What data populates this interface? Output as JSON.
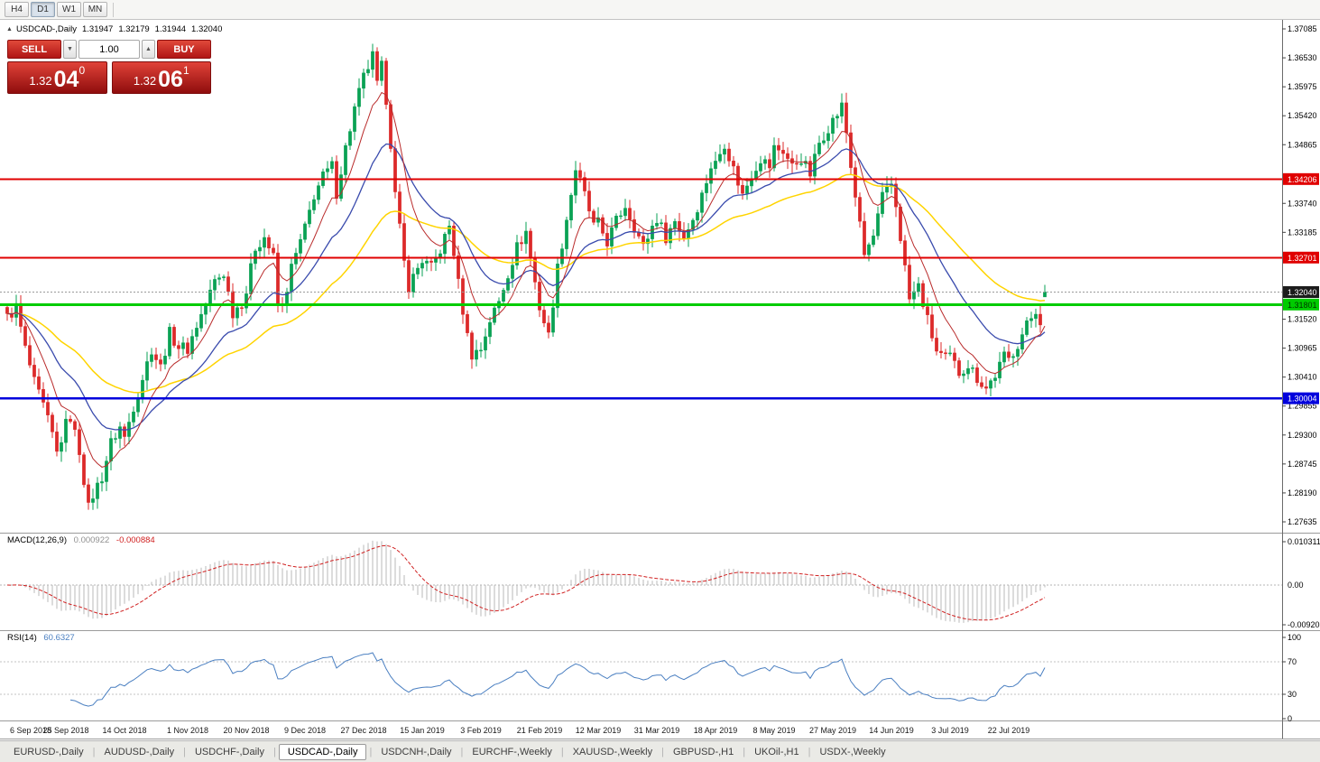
{
  "window": {
    "timeframes": [
      {
        "label": "H4",
        "active": false
      },
      {
        "label": "D1",
        "active": true
      },
      {
        "label": "W1",
        "active": false
      },
      {
        "label": "MN",
        "active": false
      }
    ]
  },
  "chart": {
    "symbol_label": "USDCAD-,Daily",
    "collapse_icon": "▲",
    "ohlc": {
      "open": "1.31947",
      "high": "1.32179",
      "low": "1.31944",
      "close": "1.32040"
    },
    "trade_panel": {
      "sell_label": "SELL",
      "buy_label": "BUY",
      "volume": "1.00",
      "vol_down_icon": "▼",
      "vol_up_icon": "▲",
      "sell_price": {
        "base": "1.32",
        "pips": "04",
        "frac": "0"
      },
      "buy_price": {
        "base": "1.32",
        "pips": "06",
        "frac": "1"
      }
    },
    "price_axis_ticks": [
      "1.37085",
      "1.36530",
      "1.35975",
      "1.35420",
      "1.34865",
      "1.33740",
      "1.33185",
      "1.31520",
      "1.30965",
      "1.30410",
      "1.29855",
      "1.29300",
      "1.28745",
      "1.28190",
      "1.27635"
    ]
  },
  "indicators": {
    "macd": {
      "title": "MACD(12,26,9)",
      "value_main": "0.000922",
      "value_signal": "-0.000884",
      "axis_top": "0.010311",
      "axis_zero": "0.00",
      "axis_bottom": "-0.009203"
    },
    "rsi": {
      "title": "RSI(14)",
      "value": "60.6327",
      "axis": [
        "100",
        "70",
        "30",
        "0"
      ],
      "level_lines": [
        70,
        30
      ]
    }
  },
  "tabs": {
    "items": [
      {
        "label": "EURUSD-,Daily",
        "active": false
      },
      {
        "label": "AUDUSD-,Daily",
        "active": false
      },
      {
        "label": "USDCHF-,Daily",
        "active": false
      },
      {
        "label": "USDCAD-,Daily",
        "active": true
      },
      {
        "label": "USDCNH-,Daily",
        "active": false
      },
      {
        "label": "EURCHF-,Weekly",
        "active": false
      },
      {
        "label": "XAUUSD-,Weekly",
        "active": false
      },
      {
        "label": "GBPUSD-,H1",
        "active": false
      },
      {
        "label": "UKOil-,H1",
        "active": false
      },
      {
        "label": "USDX-,Weekly",
        "active": false
      }
    ]
  },
  "colors": {
    "candle_up": "#0aa254",
    "candle_down": "#dc2a2a",
    "ma_fast_red": "#b92b2b",
    "ma_mid_blue": "#3a4bad",
    "ma_slow_yellow": "#ffd400",
    "macd_histogram": "#b8b8b8",
    "macd_signal": "#d02020",
    "rsi_line": "#4a7fc1",
    "level_red": "#e00000",
    "level_green": "#00cc00",
    "level_blue": "#0000dd",
    "current_price_badge": "#1c1c1c",
    "axis_text": "#000000"
  },
  "chart_data": {
    "type": "candlestick",
    "symbol": "USDCAD",
    "timeframe": "Daily",
    "title": "USDCAD-,Daily",
    "y_range": [
      1.27635,
      1.37085
    ],
    "bar_count": 231,
    "last_ohlc": [
      1.31947,
      1.32179,
      1.31944,
      1.3204
    ],
    "levels": [
      {
        "value": 1.34206,
        "label": "1.34206",
        "color_key": "level_red",
        "width": 2
      },
      {
        "value": 1.32701,
        "label": "1.32701",
        "color_key": "level_red",
        "width": 2
      },
      {
        "value": 1.31801,
        "label": "1.31801",
        "color_key": "level_green",
        "width": 3
      },
      {
        "value": 1.30004,
        "label": "1.30004",
        "color_key": "level_blue",
        "width": 2.5
      }
    ],
    "current_price": {
      "value": 1.3204,
      "label": "1.32040"
    },
    "moving_averages": [
      {
        "period": 9,
        "color_key": "ma_fast_red",
        "width": 1
      },
      {
        "period": 22,
        "color_key": "ma_mid_blue",
        "width": 1.3
      },
      {
        "period": 50,
        "color_key": "ma_slow_yellow",
        "width": 1.5
      }
    ],
    "macd_params": [
      12,
      26,
      9
    ],
    "rsi_period": 14,
    "x_labels": [
      [
        0,
        "6 Sep 2018"
      ],
      [
        13,
        "25 Sep 2018"
      ],
      [
        26,
        "14 Oct 2018"
      ],
      [
        40,
        "1 Nov 2018"
      ],
      [
        53,
        "20 Nov 2018"
      ],
      [
        66,
        "9 Dec 2018"
      ],
      [
        79,
        "27 Dec 2018"
      ],
      [
        92,
        "15 Jan 2019"
      ],
      [
        105,
        "3 Feb 2019"
      ],
      [
        118,
        "21 Feb 2019"
      ],
      [
        131,
        "12 Mar 2019"
      ],
      [
        144,
        "31 Mar 2019"
      ],
      [
        157,
        "18 Apr 2019"
      ],
      [
        170,
        "8 May 2019"
      ],
      [
        183,
        "27 May 2019"
      ],
      [
        196,
        "14 Jun 2019"
      ],
      [
        209,
        "3 Jul 2019"
      ],
      [
        222,
        "22 Jul 2019"
      ]
    ],
    "close_waypoints": [
      [
        0,
        1.3155
      ],
      [
        2,
        1.3175
      ],
      [
        4,
        1.3095
      ],
      [
        6,
        1.303
      ],
      [
        8,
        1.2985
      ],
      [
        10,
        1.293
      ],
      [
        11,
        1.2895
      ],
      [
        13,
        1.295
      ],
      [
        14,
        1.2965
      ],
      [
        16,
        1.29
      ],
      [
        18,
        1.279
      ],
      [
        19,
        1.2815
      ],
      [
        21,
        1.285
      ],
      [
        23,
        1.2915
      ],
      [
        25,
        1.2945
      ],
      [
        26,
        1.2925
      ],
      [
        28,
        1.2985
      ],
      [
        30,
        1.304
      ],
      [
        32,
        1.3095
      ],
      [
        34,
        1.306
      ],
      [
        36,
        1.3125
      ],
      [
        38,
        1.31
      ],
      [
        40,
        1.3095
      ],
      [
        42,
        1.314
      ],
      [
        44,
        1.318
      ],
      [
        46,
        1.3225
      ],
      [
        48,
        1.324
      ],
      [
        50,
        1.3165
      ],
      [
        52,
        1.3185
      ],
      [
        53,
        1.3205
      ],
      [
        55,
        1.329
      ],
      [
        57,
        1.331
      ],
      [
        59,
        1.327
      ],
      [
        60,
        1.318
      ],
      [
        61,
        1.3175
      ],
      [
        63,
        1.325
      ],
      [
        66,
        1.3325
      ],
      [
        68,
        1.339
      ],
      [
        70,
        1.3425
      ],
      [
        72,
        1.3445
      ],
      [
        73,
        1.3395
      ],
      [
        75,
        1.348
      ],
      [
        77,
        1.3555
      ],
      [
        79,
        1.3615
      ],
      [
        81,
        1.3655
      ],
      [
        82,
        1.36
      ],
      [
        83,
        1.3635
      ],
      [
        84,
        1.3575
      ],
      [
        85,
        1.349
      ],
      [
        86,
        1.339
      ],
      [
        88,
        1.326
      ],
      [
        89,
        1.3215
      ],
      [
        91,
        1.325
      ],
      [
        92,
        1.3265
      ],
      [
        94,
        1.325
      ],
      [
        96,
        1.3285
      ],
      [
        98,
        1.333
      ],
      [
        99,
        1.328
      ],
      [
        100,
        1.322
      ],
      [
        102,
        1.312
      ],
      [
        103,
        1.3085
      ],
      [
        105,
        1.3095
      ],
      [
        107,
        1.315
      ],
      [
        109,
        1.3185
      ],
      [
        111,
        1.324
      ],
      [
        113,
        1.329
      ],
      [
        115,
        1.332
      ],
      [
        116,
        1.327
      ],
      [
        118,
        1.3175
      ],
      [
        120,
        1.312
      ],
      [
        122,
        1.325
      ],
      [
        124,
        1.3345
      ],
      [
        126,
        1.344
      ],
      [
        128,
        1.339
      ],
      [
        130,
        1.333
      ],
      [
        131,
        1.3335
      ],
      [
        133,
        1.33
      ],
      [
        135,
        1.334
      ],
      [
        137,
        1.337
      ],
      [
        139,
        1.333
      ],
      [
        141,
        1.329
      ],
      [
        143,
        1.333
      ],
      [
        144,
        1.3345
      ],
      [
        146,
        1.331
      ],
      [
        148,
        1.334
      ],
      [
        150,
        1.331
      ],
      [
        152,
        1.3345
      ],
      [
        154,
        1.339
      ],
      [
        156,
        1.3445
      ],
      [
        157,
        1.345
      ],
      [
        159,
        1.349
      ],
      [
        161,
        1.344
      ],
      [
        163,
        1.339
      ],
      [
        165,
        1.343
      ],
      [
        167,
        1.346
      ],
      [
        169,
        1.3445
      ],
      [
        170,
        1.348
      ],
      [
        172,
        1.3475
      ],
      [
        174,
        1.3445
      ],
      [
        176,
        1.346
      ],
      [
        178,
        1.343
      ],
      [
        180,
        1.349
      ],
      [
        182,
        1.352
      ],
      [
        184,
        1.3545
      ],
      [
        185,
        1.356
      ],
      [
        186,
        1.351
      ],
      [
        187,
        1.3445
      ],
      [
        188,
        1.339
      ],
      [
        189,
        1.333
      ],
      [
        190,
        1.3275
      ],
      [
        192,
        1.331
      ],
      [
        194,
        1.3385
      ],
      [
        196,
        1.341
      ],
      [
        197,
        1.337
      ],
      [
        198,
        1.331
      ],
      [
        199,
        1.325
      ],
      [
        200,
        1.319
      ],
      [
        202,
        1.3215
      ],
      [
        204,
        1.315
      ],
      [
        206,
        1.309
      ],
      [
        208,
        1.3075
      ],
      [
        209,
        1.308
      ],
      [
        211,
        1.305
      ],
      [
        213,
        1.3065
      ],
      [
        215,
        1.304
      ],
      [
        217,
        1.302
      ],
      [
        219,
        1.3045
      ],
      [
        221,
        1.308
      ],
      [
        222,
        1.3075
      ],
      [
        224,
        1.3105
      ],
      [
        226,
        1.314
      ],
      [
        228,
        1.317
      ],
      [
        229,
        1.315
      ],
      [
        230,
        1.3204
      ]
    ]
  }
}
